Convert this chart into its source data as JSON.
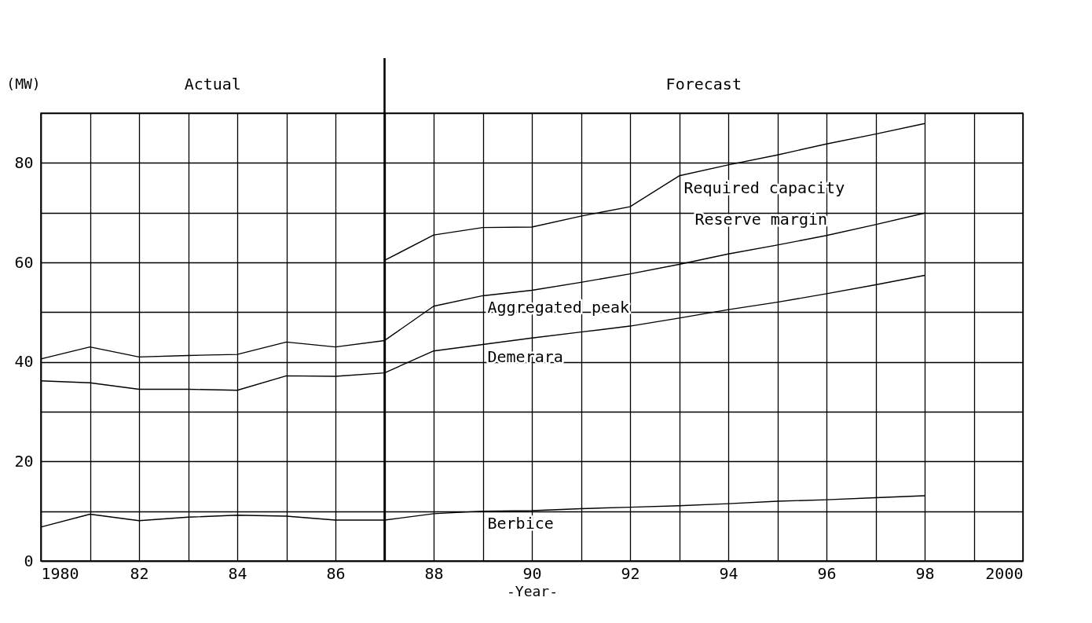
{
  "chart_data": {
    "type": "line",
    "ylabel": "(MW)",
    "xlabel": "-Year-",
    "x": [
      1980,
      1981,
      1982,
      1983,
      1984,
      1985,
      1986,
      1987,
      1988,
      1989,
      1990,
      1991,
      1992,
      1993,
      1994,
      1995,
      1996,
      1997,
      1998
    ],
    "series": [
      {
        "name": "Required capacity",
        "color": "#000000",
        "x": [
          1987,
          1988,
          1989,
          1990,
          1991,
          1992,
          1993,
          1994,
          1995,
          1996,
          1997,
          1998
        ],
        "values": [
          60.4,
          65.5,
          67,
          67.1,
          69.3,
          71.2,
          77.4,
          79.6,
          81.6,
          83.8,
          85.8,
          87.9
        ]
      },
      {
        "name": "Aggregated peak",
        "color": "#000000",
        "values": [
          40.6,
          43.0,
          41.0,
          41.3,
          41.5,
          44.0,
          43.0,
          44.3,
          51.2,
          53.3,
          54.4,
          56,
          57.7,
          59.6,
          61.7,
          63.5,
          65.4,
          67.6,
          69.9
        ]
      },
      {
        "name": "Demerara",
        "color": "#000000",
        "values": [
          36.2,
          35.8,
          34.5,
          34.5,
          34.3,
          37.2,
          37.1,
          37.8,
          42.2,
          43.5,
          44.8,
          46,
          47.2,
          48.8,
          50.5,
          52,
          53.7,
          55.5,
          57.4
        ]
      },
      {
        "name": "Berbice",
        "color": "#000000",
        "values": [
          6.8,
          9.4,
          8.1,
          8.8,
          9.2,
          9.0,
          8.2,
          8.2,
          9.5,
          10.0,
          10.1,
          10.5,
          10.8,
          11.1,
          11.5,
          12.0,
          12.3,
          12.7,
          13.1
        ]
      }
    ],
    "annotations": [
      "Actual",
      "Forecast",
      "Reserve margin"
    ],
    "ref_lines": [
      {
        "axis": "x",
        "value": 1987
      }
    ],
    "xlim": [
      1980,
      2000
    ],
    "xticks": [
      1980,
      {
        "value": 1981,
        "label": null
      },
      {
        "value": 1982,
        "label": "82"
      },
      {
        "value": 1983,
        "label": null
      },
      {
        "value": 1984,
        "label": "84"
      },
      {
        "value": 1985,
        "label": null
      },
      {
        "value": 1986,
        "label": "86"
      },
      {
        "value": 1987,
        "label": null
      },
      {
        "value": 1988,
        "label": "88"
      },
      {
        "value": 1989,
        "label": null
      },
      {
        "value": 1990,
        "label": "90"
      },
      {
        "value": 1991,
        "label": null
      },
      {
        "value": 1992,
        "label": "92"
      },
      {
        "value": 1993,
        "label": null
      },
      {
        "value": 1994,
        "label": "94"
      },
      {
        "value": 1995,
        "label": null
      },
      {
        "value": 1996,
        "label": "96"
      },
      {
        "value": 1997,
        "label": null
      },
      {
        "value": 1998,
        "label": "98"
      },
      {
        "value": 1999,
        "label": null
      },
      2000
    ],
    "ylim": [
      0,
      90
    ],
    "yticks": [
      0,
      {
        "value": 10,
        "label": null
      },
      20,
      {
        "value": 30,
        "label": null
      },
      40,
      {
        "value": 50,
        "label": null
      },
      60,
      {
        "value": 70,
        "label": null
      },
      80,
      {
        "value": 90,
        "label": null
      }
    ],
    "grid": true,
    "marker": "none",
    "line_style": "solid"
  }
}
